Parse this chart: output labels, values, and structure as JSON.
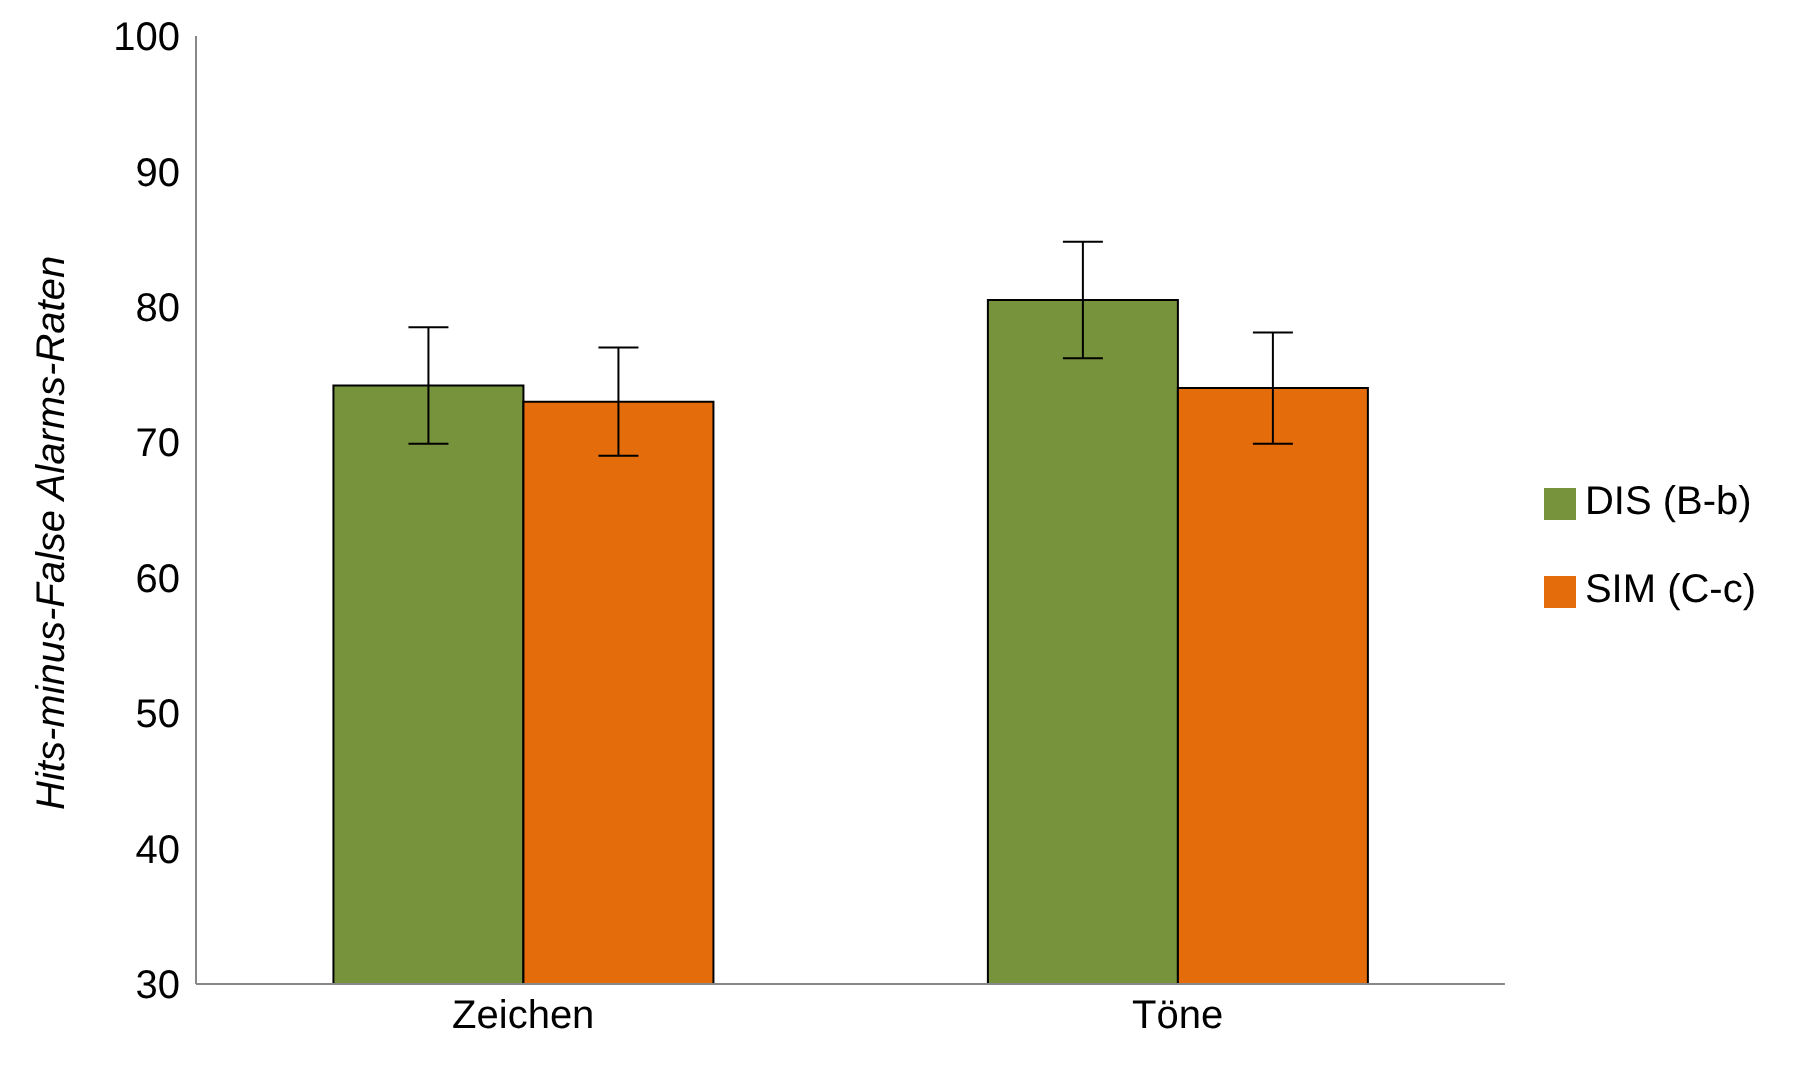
{
  "chart_data": {
    "type": "bar",
    "ylabel": "Hits-minus-False Alarms-Raten",
    "categories": [
      "Zeichen",
      "Töne"
    ],
    "series": [
      {
        "name": "DIS (B-b)",
        "color": "#77933c",
        "values": [
          74.2,
          80.5
        ],
        "errors": [
          4.3,
          4.3
        ]
      },
      {
        "name": "SIM (C-c)",
        "color": "#e46c0a",
        "values": [
          73.0,
          74.0
        ],
        "errors": [
          4.0,
          4.1
        ]
      }
    ],
    "ylim": [
      30,
      100
    ],
    "yticks": [
      30,
      40,
      50,
      60,
      70,
      80,
      90,
      100
    ],
    "grid": false,
    "legend": "right"
  }
}
